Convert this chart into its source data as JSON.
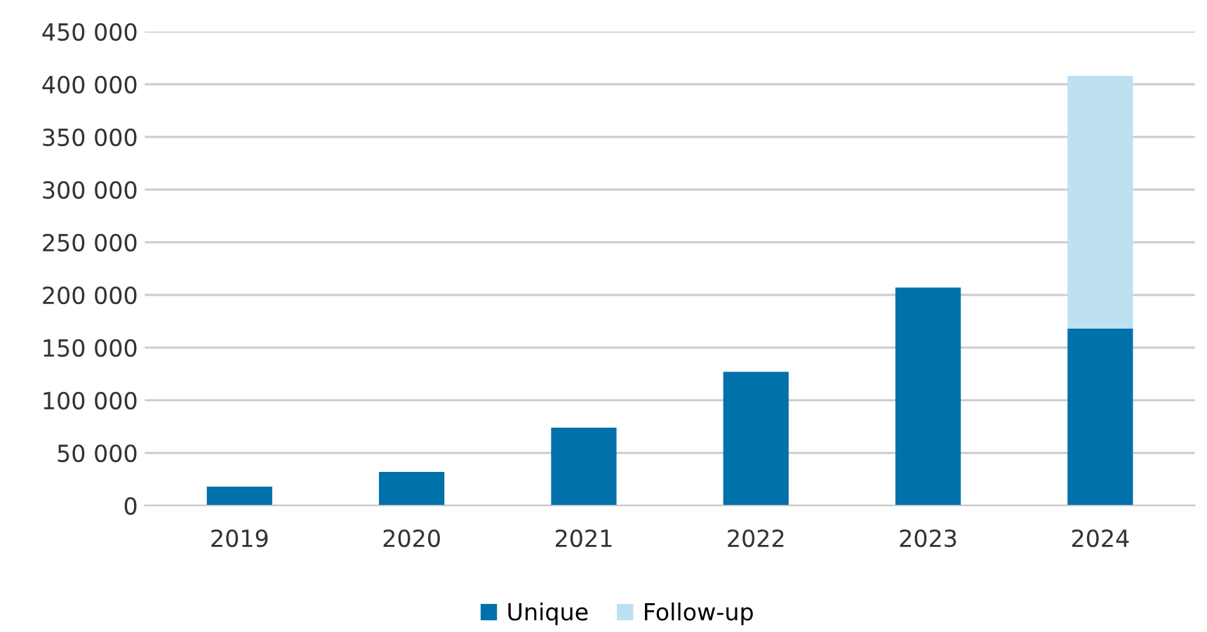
{
  "chart_data": {
    "type": "bar",
    "stacked": true,
    "categories": [
      "2019",
      "2020",
      "2021",
      "2022",
      "2023",
      "2024"
    ],
    "series": [
      {
        "name": "Unique",
        "color": "#0071aa",
        "values": [
          18000,
          32000,
          74000,
          127000,
          207000,
          168000
        ]
      },
      {
        "name": "Follow-up",
        "color": "#bee0f0",
        "values": [
          null,
          null,
          null,
          null,
          null,
          240000
        ]
      }
    ],
    "ylim": [
      0,
      450000
    ],
    "yticks": [
      {
        "value": 0,
        "label": "0"
      },
      {
        "value": 50000,
        "label": "50 000"
      },
      {
        "value": 100000,
        "label": "100 000"
      },
      {
        "value": 150000,
        "label": "150 000"
      },
      {
        "value": 200000,
        "label": "200 000"
      },
      {
        "value": 250000,
        "label": "250 000"
      },
      {
        "value": 300000,
        "label": "300 000"
      },
      {
        "value": 350000,
        "label": "350 000"
      },
      {
        "value": 400000,
        "label": "400 000"
      },
      {
        "value": 450000,
        "label": "450 000"
      }
    ],
    "grid": "y",
    "legend": "bottom"
  }
}
